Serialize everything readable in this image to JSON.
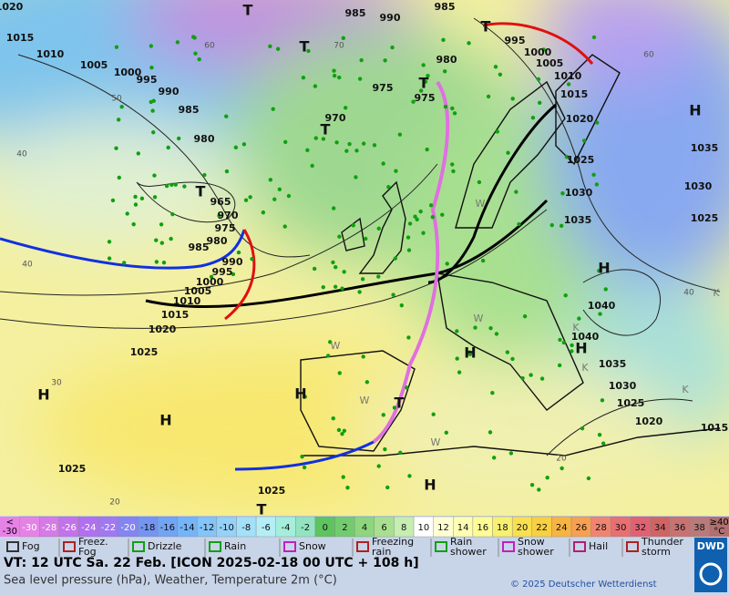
{
  "map": {
    "pressure_labels": [
      "1020",
      "1015",
      "1010",
      "1005",
      "1000",
      "995",
      "990",
      "985",
      "980",
      "965",
      "970",
      "975",
      "980",
      "985",
      "990",
      "995",
      "1000",
      "1005",
      "1010",
      "1015",
      "1020",
      "1025",
      "985",
      "990",
      "985",
      "980",
      "975",
      "975",
      "970",
      "995",
      "1000",
      "1005",
      "1010",
      "1015",
      "1020",
      "1025",
      "1030",
      "1035",
      "1035",
      "1030",
      "1025",
      "1040",
      "1040",
      "1035",
      "1030",
      "1025",
      "1020",
      "1015",
      "1025",
      "1025"
    ],
    "systems": [
      "H",
      "H",
      "H",
      "H",
      "H",
      "H",
      "H",
      "H",
      "T",
      "T",
      "T",
      "T",
      "T",
      "T",
      "T",
      "T"
    ],
    "grid_labels": [
      "40",
      "30",
      "20",
      "40",
      "60",
      "50",
      "70",
      "60",
      "40",
      "20"
    ],
    "mass_labels": [
      "W",
      "W",
      "W",
      "W",
      "W",
      "K",
      "K",
      "K",
      "K"
    ]
  },
  "color_scale": {
    "below_label": [
      "<",
      "-30"
    ],
    "above_label": [
      "≥40",
      "°C"
    ],
    "steps": [
      {
        "value": -30,
        "color": "#e682e6"
      },
      {
        "value": -28,
        "color": "#d67ae6"
      },
      {
        "value": -26,
        "color": "#c272ea"
      },
      {
        "value": -24,
        "color": "#b070f0"
      },
      {
        "value": -22,
        "color": "#a078f0"
      },
      {
        "value": -20,
        "color": "#8484f2"
      },
      {
        "value": -18,
        "color": "#7494f2"
      },
      {
        "value": -16,
        "color": "#72a4f4"
      },
      {
        "value": -14,
        "color": "#74b4f8"
      },
      {
        "value": -12,
        "color": "#84c4f8"
      },
      {
        "value": -10,
        "color": "#94d2f8"
      },
      {
        "value": -8,
        "color": "#a4e0f8"
      },
      {
        "value": -6,
        "color": "#b4eef6"
      },
      {
        "value": -4,
        "color": "#a4eedc"
      },
      {
        "value": -2,
        "color": "#92e4c0"
      },
      {
        "value": 0,
        "color": "#5ec45e"
      },
      {
        "value": 2,
        "color": "#72cc6e"
      },
      {
        "value": 4,
        "color": "#8ed67e"
      },
      {
        "value": 6,
        "color": "#a8e090"
      },
      {
        "value": 8,
        "color": "#c6eeb0"
      },
      {
        "value": 10,
        "color": "#ffffff"
      },
      {
        "value": 12,
        "color": "#ffffd2"
      },
      {
        "value": 14,
        "color": "#ffffb2"
      },
      {
        "value": 16,
        "color": "#fffc94"
      },
      {
        "value": 18,
        "color": "#f8f070"
      },
      {
        "value": 20,
        "color": "#f8e052"
      },
      {
        "value": 22,
        "color": "#f8d040"
      },
      {
        "value": 24,
        "color": "#f8b440"
      },
      {
        "value": 26,
        "color": "#f8a050"
      },
      {
        "value": 28,
        "color": "#f08470"
      },
      {
        "value": 30,
        "color": "#e87070"
      },
      {
        "value": 32,
        "color": "#e06272"
      },
      {
        "value": 34,
        "color": "#d06464"
      },
      {
        "value": 36,
        "color": "#c87272"
      },
      {
        "value": 38,
        "color": "#b87a7a"
      }
    ]
  },
  "weather_legend": [
    [
      "Fog"
    ],
    [
      "Freez.",
      "Fog"
    ],
    [
      "Drizzle"
    ],
    [
      "Rain"
    ],
    [
      "Snow"
    ],
    [
      "Freezing",
      "rain"
    ],
    [
      "Rain",
      "shower"
    ],
    [
      "Snow",
      "shower"
    ],
    [
      "Hail"
    ],
    [
      "Thunder",
      "storm"
    ]
  ],
  "footer": {
    "valid_time": "VT: 12 UTC Sa.  22 Feb. [ICON 2025-02-18  00 UTC + 108 h]",
    "description": "Sea level pressure (hPa), Weather, Temperature 2m (°C)",
    "copyright": "© 2025 Deutscher Wetterdienst",
    "logo": "DWD"
  }
}
